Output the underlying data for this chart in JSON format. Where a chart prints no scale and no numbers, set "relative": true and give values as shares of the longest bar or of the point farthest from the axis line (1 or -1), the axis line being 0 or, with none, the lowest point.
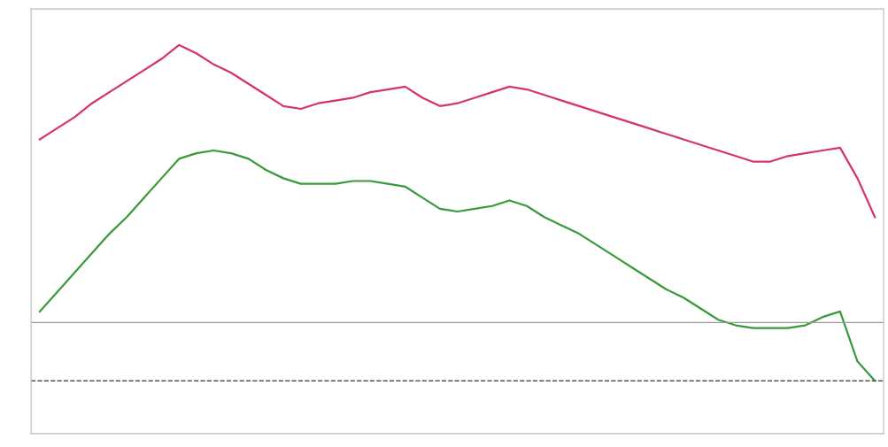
{
  "chart_data": {
    "type": "line",
    "relative": true,
    "categories": [
      null,
      null,
      null,
      null,
      null,
      null,
      null,
      null,
      null,
      null,
      null,
      null,
      null,
      null,
      null,
      null,
      null,
      null,
      null,
      null,
      null,
      null,
      null,
      null,
      null,
      null,
      null,
      null,
      null,
      null,
      null,
      null,
      null,
      null,
      null,
      null,
      null,
      null,
      null,
      null,
      null,
      null,
      null,
      null,
      null,
      null,
      null,
      null,
      null
    ],
    "series": [
      {
        "color": "#d6336c",
        "values": [
          0.66,
          0.7,
          0.74,
          0.79,
          0.83,
          0.87,
          0.91,
          0.95,
          1.0,
          0.97,
          0.93,
          0.9,
          0.86,
          0.82,
          0.78,
          0.77,
          0.79,
          0.8,
          0.81,
          0.83,
          0.84,
          0.85,
          0.81,
          0.78,
          0.79,
          0.81,
          0.83,
          0.85,
          0.84,
          0.82,
          0.8,
          0.78,
          0.76,
          0.74,
          0.72,
          0.7,
          0.68,
          0.66,
          0.64,
          0.62,
          0.6,
          0.58,
          0.58,
          0.6,
          0.61,
          0.62,
          0.63,
          0.52,
          0.38
        ]
      },
      {
        "color": "#3a9a3a",
        "values": [
          0.04,
          0.11,
          0.18,
          0.25,
          0.32,
          0.38,
          0.45,
          0.52,
          0.59,
          0.61,
          0.62,
          0.61,
          0.59,
          0.55,
          0.52,
          0.5,
          0.5,
          0.5,
          0.51,
          0.51,
          0.5,
          0.49,
          0.45,
          0.41,
          0.4,
          0.41,
          0.42,
          0.44,
          0.42,
          0.38,
          0.35,
          0.32,
          0.28,
          0.24,
          0.2,
          0.16,
          0.12,
          0.09,
          0.05,
          0.01,
          -0.01,
          -0.02,
          -0.02,
          -0.02,
          -0.01,
          0.02,
          0.04,
          -0.14,
          -0.21
        ]
      }
    ],
    "ref_lines": [
      {
        "axis": "y",
        "value": -0.21,
        "color": "#555555",
        "line_style": "dashed"
      }
    ],
    "marker": "none",
    "line_style": "solid",
    "grid": false,
    "legend": false
  }
}
